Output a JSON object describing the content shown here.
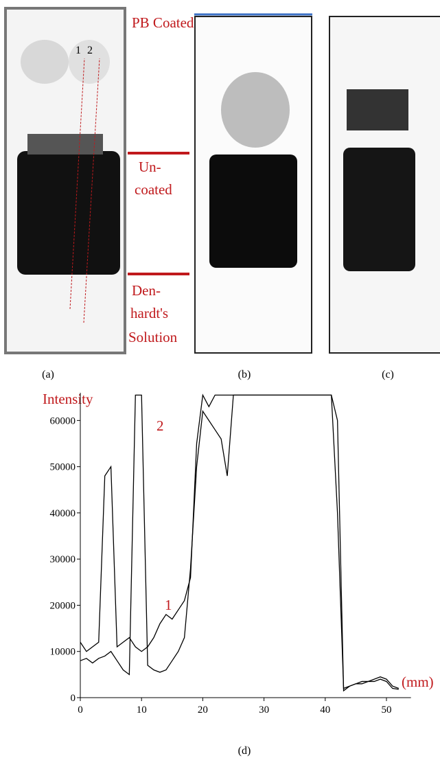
{
  "figure": {
    "line_labels": [
      "1",
      "2"
    ],
    "regions": [
      "PB Coated",
      "Un-",
      "coated",
      "Den-",
      "hardt's",
      "Solution"
    ],
    "captions": [
      "(a)",
      "(b)",
      "(c)"
    ]
  },
  "chart_data": {
    "type": "line",
    "y_label": "Intensity",
    "x_label": "(mm)",
    "caption": "(d)",
    "x": [
      0,
      1,
      2,
      3,
      4,
      5,
      6,
      7,
      8,
      9,
      10,
      11,
      12,
      13,
      14,
      15,
      16,
      17,
      18,
      19,
      20,
      21,
      22,
      23,
      24,
      25,
      26,
      27,
      28,
      29,
      30,
      31,
      32,
      33,
      34,
      35,
      36,
      37,
      38,
      39,
      40,
      41,
      42,
      43,
      44,
      45,
      46,
      47,
      48,
      49,
      50,
      51,
      52
    ],
    "series": [
      {
        "name": "1",
        "color": "#000000",
        "values": [
          12000,
          10000,
          11000,
          12000,
          48000,
          50000,
          11000,
          12000,
          13000,
          11000,
          10000,
          11000,
          13000,
          16000,
          18000,
          17000,
          19000,
          21000,
          26000,
          55000,
          65500,
          63000,
          65500,
          65500,
          65500,
          65500,
          65500,
          65500,
          65500,
          65500,
          65500,
          65500,
          65500,
          65500,
          65500,
          65500,
          65500,
          65500,
          65500,
          65500,
          65500,
          65500,
          40000,
          2000,
          2500,
          3000,
          3500,
          3500,
          4000,
          4500,
          4000,
          2500,
          2000
        ]
      },
      {
        "name": "2",
        "color": "#000000",
        "values": [
          8000,
          8500,
          7500,
          8500,
          9000,
          10000,
          8000,
          6000,
          5000,
          65500,
          65500,
          7000,
          6000,
          5500,
          6000,
          8000,
          10000,
          13000,
          28000,
          50000,
          62000,
          60000,
          58000,
          56000,
          48000,
          65500,
          65500,
          65500,
          65500,
          65500,
          65500,
          65500,
          65500,
          65500,
          65500,
          65500,
          65500,
          65500,
          65500,
          65500,
          65500,
          65500,
          60000,
          1500,
          2500,
          3000,
          3000,
          3500,
          3500,
          4000,
          3500,
          2000,
          1800
        ]
      }
    ],
    "xlim": [
      0,
      54
    ],
    "ylim": [
      0,
      66000
    ],
    "xticks": [
      0,
      10,
      20,
      30,
      40,
      50
    ],
    "yticks": [
      0,
      10000,
      20000,
      30000,
      40000,
      50000,
      60000
    ]
  }
}
